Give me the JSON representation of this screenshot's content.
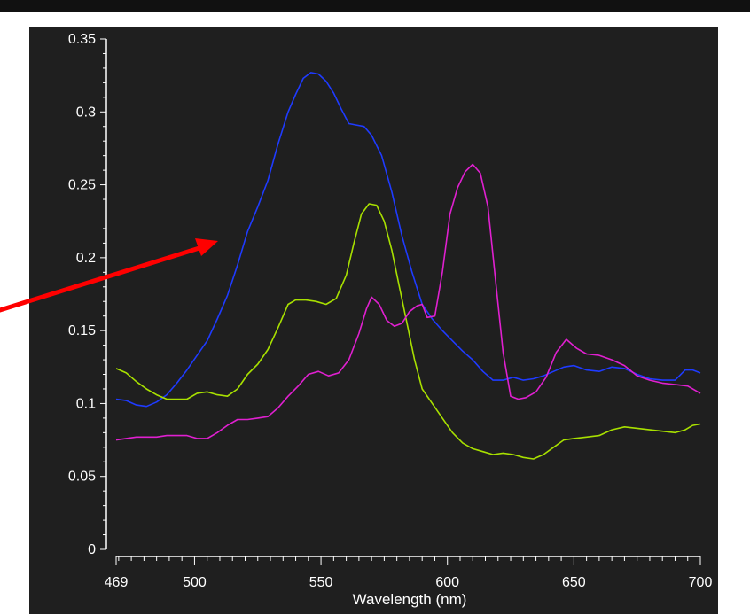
{
  "chart_data": {
    "type": "line",
    "title": "",
    "xlabel": "Wavelength (nm)",
    "ylabel": "",
    "xlim": [
      469,
      700
    ],
    "ylim": [
      0,
      0.35
    ],
    "x_ticks": [
      469,
      500,
      550,
      600,
      650,
      700
    ],
    "x_tick_labels": [
      "469",
      "500",
      "550",
      "600",
      "650",
      "700"
    ],
    "y_ticks": [
      0,
      0.05,
      0.1,
      0.15,
      0.2,
      0.25,
      0.3,
      0.35
    ],
    "y_tick_labels": [
      "0",
      "0.05",
      "0.1",
      "0.15",
      "0.2",
      "0.25",
      "0.3",
      "0.35"
    ],
    "grid": false,
    "background_color": "#1f1f1f",
    "axis_color": "#ffffff",
    "annotation_arrow_color": "#ff0000",
    "series": [
      {
        "color": "#1f3bff",
        "points": [
          [
            469,
            0.103
          ],
          [
            473,
            0.102
          ],
          [
            477,
            0.099
          ],
          [
            481,
            0.098
          ],
          [
            485,
            0.101
          ],
          [
            489,
            0.106
          ],
          [
            493,
            0.114
          ],
          [
            497,
            0.123
          ],
          [
            501,
            0.133
          ],
          [
            505,
            0.143
          ],
          [
            509,
            0.158
          ],
          [
            513,
            0.174
          ],
          [
            517,
            0.195
          ],
          [
            521,
            0.218
          ],
          [
            525,
            0.235
          ],
          [
            529,
            0.253
          ],
          [
            533,
            0.278
          ],
          [
            537,
            0.3
          ],
          [
            540,
            0.312
          ],
          [
            543,
            0.323
          ],
          [
            546,
            0.327
          ],
          [
            549,
            0.326
          ],
          [
            552,
            0.321
          ],
          [
            555,
            0.313
          ],
          [
            558,
            0.302
          ],
          [
            561,
            0.292
          ],
          [
            564,
            0.291
          ],
          [
            567,
            0.29
          ],
          [
            570,
            0.284
          ],
          [
            574,
            0.27
          ],
          [
            578,
            0.245
          ],
          [
            582,
            0.215
          ],
          [
            586,
            0.19
          ],
          [
            590,
            0.168
          ],
          [
            594,
            0.158
          ],
          [
            598,
            0.15
          ],
          [
            602,
            0.143
          ],
          [
            606,
            0.136
          ],
          [
            610,
            0.13
          ],
          [
            614,
            0.122
          ],
          [
            618,
            0.116
          ],
          [
            622,
            0.116
          ],
          [
            626,
            0.118
          ],
          [
            630,
            0.116
          ],
          [
            634,
            0.117
          ],
          [
            638,
            0.119
          ],
          [
            642,
            0.122
          ],
          [
            646,
            0.125
          ],
          [
            650,
            0.126
          ],
          [
            655,
            0.123
          ],
          [
            660,
            0.122
          ],
          [
            665,
            0.125
          ],
          [
            670,
            0.124
          ],
          [
            675,
            0.12
          ],
          [
            680,
            0.117
          ],
          [
            685,
            0.116
          ],
          [
            690,
            0.116
          ],
          [
            694,
            0.123
          ],
          [
            697,
            0.123
          ],
          [
            700,
            0.121
          ]
        ]
      },
      {
        "color": "#a8e000",
        "points": [
          [
            469,
            0.124
          ],
          [
            473,
            0.121
          ],
          [
            477,
            0.115
          ],
          [
            481,
            0.11
          ],
          [
            485,
            0.106
          ],
          [
            489,
            0.103
          ],
          [
            493,
            0.103
          ],
          [
            497,
            0.103
          ],
          [
            501,
            0.107
          ],
          [
            505,
            0.108
          ],
          [
            509,
            0.106
          ],
          [
            513,
            0.105
          ],
          [
            517,
            0.11
          ],
          [
            521,
            0.12
          ],
          [
            525,
            0.127
          ],
          [
            529,
            0.137
          ],
          [
            533,
            0.152
          ],
          [
            537,
            0.168
          ],
          [
            540,
            0.171
          ],
          [
            544,
            0.171
          ],
          [
            548,
            0.17
          ],
          [
            552,
            0.168
          ],
          [
            556,
            0.172
          ],
          [
            560,
            0.188
          ],
          [
            563,
            0.21
          ],
          [
            566,
            0.23
          ],
          [
            569,
            0.237
          ],
          [
            572,
            0.236
          ],
          [
            575,
            0.225
          ],
          [
            578,
            0.205
          ],
          [
            581,
            0.18
          ],
          [
            584,
            0.155
          ],
          [
            587,
            0.13
          ],
          [
            590,
            0.11
          ],
          [
            594,
            0.1
          ],
          [
            598,
            0.09
          ],
          [
            602,
            0.08
          ],
          [
            606,
            0.073
          ],
          [
            610,
            0.069
          ],
          [
            614,
            0.067
          ],
          [
            618,
            0.065
          ],
          [
            622,
            0.066
          ],
          [
            626,
            0.065
          ],
          [
            630,
            0.063
          ],
          [
            634,
            0.062
          ],
          [
            638,
            0.065
          ],
          [
            642,
            0.07
          ],
          [
            646,
            0.075
          ],
          [
            650,
            0.076
          ],
          [
            655,
            0.077
          ],
          [
            660,
            0.078
          ],
          [
            665,
            0.082
          ],
          [
            670,
            0.084
          ],
          [
            675,
            0.083
          ],
          [
            680,
            0.082
          ],
          [
            685,
            0.081
          ],
          [
            690,
            0.08
          ],
          [
            694,
            0.082
          ],
          [
            697,
            0.085
          ],
          [
            700,
            0.086
          ]
        ]
      },
      {
        "color": "#e020d0",
        "points": [
          [
            469,
            0.075
          ],
          [
            473,
            0.076
          ],
          [
            477,
            0.077
          ],
          [
            481,
            0.077
          ],
          [
            485,
            0.077
          ],
          [
            489,
            0.078
          ],
          [
            493,
            0.078
          ],
          [
            497,
            0.078
          ],
          [
            501,
            0.076
          ],
          [
            505,
            0.076
          ],
          [
            509,
            0.08
          ],
          [
            513,
            0.085
          ],
          [
            517,
            0.089
          ],
          [
            521,
            0.089
          ],
          [
            525,
            0.09
          ],
          [
            529,
            0.091
          ],
          [
            533,
            0.097
          ],
          [
            537,
            0.105
          ],
          [
            541,
            0.112
          ],
          [
            545,
            0.12
          ],
          [
            549,
            0.122
          ],
          [
            553,
            0.119
          ],
          [
            557,
            0.121
          ],
          [
            561,
            0.13
          ],
          [
            565,
            0.148
          ],
          [
            568,
            0.165
          ],
          [
            570,
            0.173
          ],
          [
            573,
            0.168
          ],
          [
            576,
            0.157
          ],
          [
            579,
            0.153
          ],
          [
            582,
            0.155
          ],
          [
            585,
            0.163
          ],
          [
            588,
            0.167
          ],
          [
            590,
            0.168
          ],
          [
            592,
            0.159
          ],
          [
            595,
            0.16
          ],
          [
            598,
            0.19
          ],
          [
            601,
            0.23
          ],
          [
            604,
            0.248
          ],
          [
            607,
            0.259
          ],
          [
            610,
            0.264
          ],
          [
            613,
            0.258
          ],
          [
            616,
            0.235
          ],
          [
            619,
            0.185
          ],
          [
            622,
            0.135
          ],
          [
            625,
            0.105
          ],
          [
            628,
            0.103
          ],
          [
            631,
            0.104
          ],
          [
            635,
            0.108
          ],
          [
            639,
            0.118
          ],
          [
            643,
            0.135
          ],
          [
            647,
            0.144
          ],
          [
            651,
            0.138
          ],
          [
            655,
            0.134
          ],
          [
            660,
            0.133
          ],
          [
            665,
            0.13
          ],
          [
            670,
            0.126
          ],
          [
            675,
            0.119
          ],
          [
            680,
            0.116
          ],
          [
            685,
            0.114
          ],
          [
            690,
            0.113
          ],
          [
            695,
            0.112
          ],
          [
            700,
            0.107
          ]
        ]
      }
    ]
  }
}
